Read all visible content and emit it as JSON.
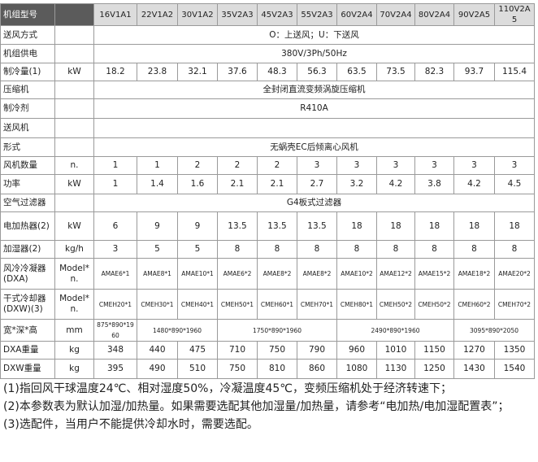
{
  "table": {
    "header": {
      "label": "机组型号",
      "models": [
        "16V1A1",
        "22V1A2",
        "30V1A2",
        "35V2A3",
        "45V2A3",
        "55V2A3",
        "60V2A4",
        "70V2A4",
        "80V2A4",
        "90V2A5",
        "110V2A5"
      ]
    },
    "rows": [
      {
        "label": "送风方式",
        "cells": [
          "O：上送风；U：下送风"
        ]
      },
      {
        "label": "机组供电",
        "cells": [
          "380V/3Ph/50Hz"
        ]
      },
      {
        "label": "制冷量(1)",
        "unit": "kW",
        "cells": [
          18.2,
          23.8,
          32.1,
          37.6,
          48.3,
          56.3,
          63.5,
          73.5,
          82.3,
          93.7,
          115.4
        ]
      },
      {
        "label": "压缩机",
        "cells": [
          "全封闭直流变频涡旋压缩机"
        ]
      },
      {
        "label": "制冷剂",
        "cells": [
          "R410A"
        ]
      },
      {
        "label": "送风机"
      },
      {
        "label": "形式",
        "cells": [
          "无蜗壳EC后倾离心风机"
        ]
      },
      {
        "label": "风机数量",
        "unit": "n.",
        "cells": [
          1,
          1,
          2,
          2,
          2,
          3,
          3,
          3,
          3,
          3,
          3
        ]
      },
      {
        "label": "功率",
        "unit": "kW",
        "cells": [
          1,
          1.4,
          1.6,
          2.1,
          2.1,
          2.7,
          3.2,
          4.2,
          3.8,
          4.2,
          4.5
        ]
      },
      {
        "label": "空气过滤器",
        "cells": [
          "G4板式过滤器"
        ]
      },
      {
        "label": "电加热器(2)",
        "unit": "kW",
        "cells": [
          6,
          9,
          9,
          13.5,
          13.5,
          13.5,
          18,
          18,
          18,
          18,
          18
        ]
      },
      {
        "label": "加湿器(2)",
        "unit": "kg/h",
        "cells": [
          3,
          5,
          5,
          8,
          8,
          8,
          8,
          8,
          8,
          8,
          8
        ]
      },
      {
        "label": "风冷冷凝器(DXA)",
        "unit": "Model*n.",
        "cells": [
          "AMAE6*1",
          "AMAE8*1",
          "AMAE10*1",
          "AMAE6*2",
          "AMAE8*2",
          "AMAE8*2",
          "AMAE10*2",
          "AMAE12*2",
          "AMAE15*2",
          "AMAE18*2",
          "AMAE20*2"
        ]
      },
      {
        "label": "干式冷却器(DXW)(3)",
        "unit": "Model*n.",
        "cells": [
          "CMEH20*1",
          "CMEH30*1",
          "CMEH40*1",
          "CMEH50*1",
          "CMEH60*1",
          "CMEH70*1",
          "CMEH80*1",
          "CMEH50*2",
          "CMEH50*2",
          "CMEH60*2",
          "CMEH70*2"
        ]
      },
      {
        "label": "宽*深*高",
        "unit": "mm",
        "cells": [
          "875*890*1960",
          "1480*890*1960",
          "1750*890*1960",
          "2490*890*1960",
          "3095*890*2050"
        ]
      },
      {
        "label": "DXA重量",
        "unit": "kg",
        "cells": [
          348,
          440,
          475,
          710,
          750,
          790,
          960,
          1010,
          1150,
          1270,
          1350
        ]
      },
      {
        "label": "DXW重量",
        "unit": "kg",
        "cells": [
          395,
          490,
          510,
          750,
          810,
          860,
          1080,
          1130,
          1250,
          1430,
          1540
        ]
      }
    ]
  },
  "notes": [
    "(1)指回风干球温度24℃、相对湿度50%，冷凝温度45℃，变频压缩机处于经济转速下；",
    "(2)本参数表为默认加湿/加热量。如果需要选配其他加湿量/加热量，请参考“电加热/电加湿配置表”；",
    "(3)选配件，当用户不能提供冷却水时，需要选配。"
  ]
}
